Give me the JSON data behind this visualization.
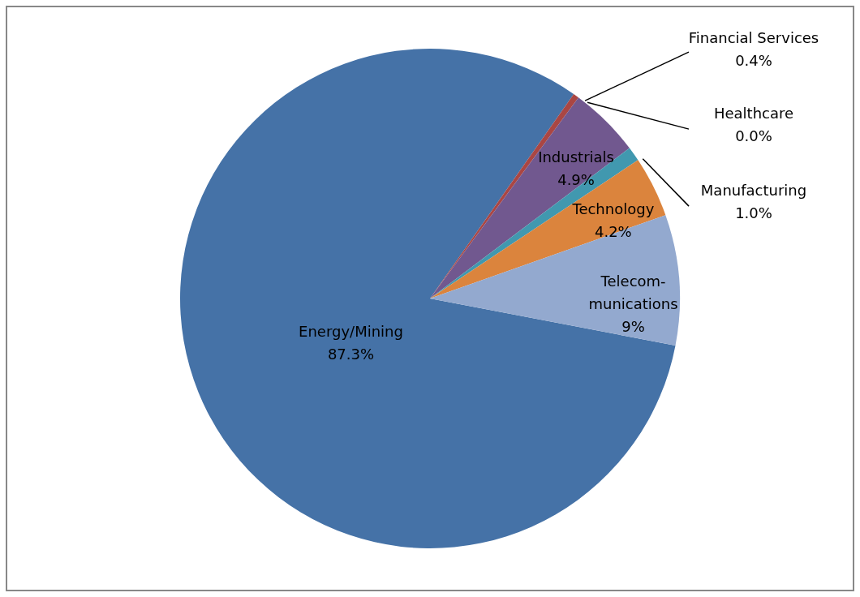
{
  "chart_data": {
    "type": "pie",
    "categories": [
      "Energy/Mining",
      "Financial Services",
      "Healthcare",
      "Industrials",
      "Manufacturing",
      "Technology",
      "Telecom-\nmunications"
    ],
    "values": [
      87.3,
      0.4,
      0.0,
      4.9,
      1.0,
      4.2,
      9
    ],
    "colors": [
      "#4572a7",
      "#aa4643",
      "#89a54e",
      "#71588f",
      "#4198af",
      "#db843d",
      "#93a9cf"
    ],
    "value_labels": [
      "87.3%",
      "0.4%",
      "0.0%",
      "4.9%",
      "1.0%",
      "4.2%",
      "9%"
    ]
  }
}
